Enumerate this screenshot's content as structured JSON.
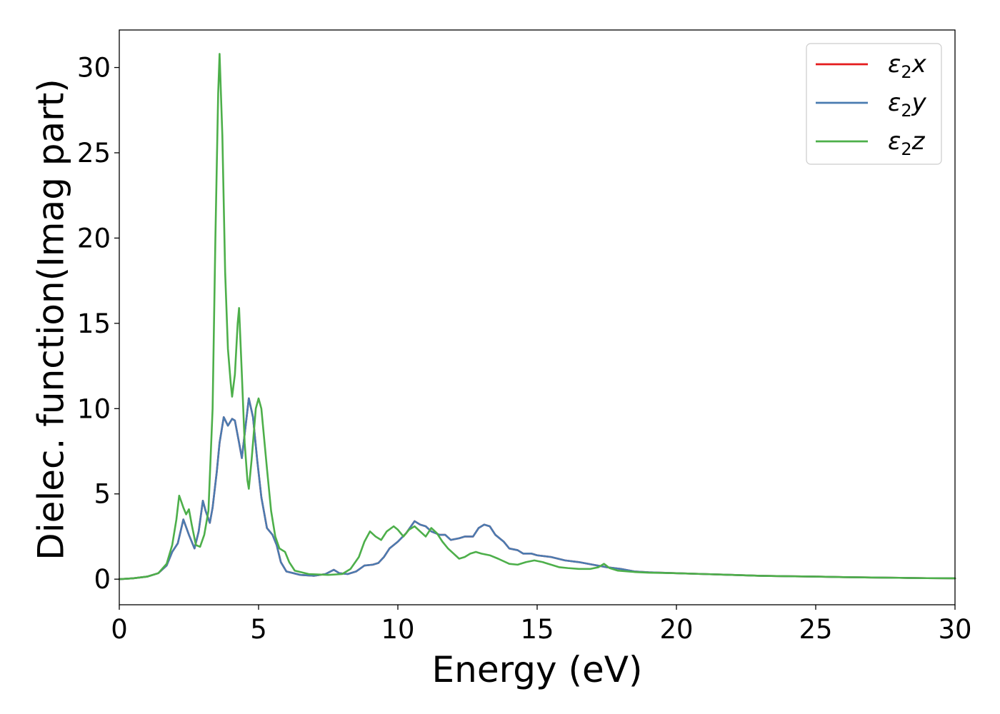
{
  "chart_data": {
    "type": "line",
    "title": "",
    "xlabel": "Energy (eV)",
    "ylabel": "Dielec. function(Imag part)",
    "xlim": [
      0,
      30
    ],
    "ylim": [
      -1.5,
      32.2
    ],
    "xticks": [
      0,
      5,
      10,
      15,
      20,
      25,
      30
    ],
    "yticks": [
      0,
      5,
      10,
      15,
      20,
      25,
      30
    ],
    "grid": false,
    "legend_position": "upper right",
    "series": [
      {
        "name": "ε2x",
        "label_base": "ε",
        "label_sub": "2",
        "label_var": "x",
        "color": "#e41a1c",
        "points": [
          [
            0,
            0
          ],
          [
            0.5,
            0.05
          ],
          [
            1.0,
            0.15
          ],
          [
            1.4,
            0.35
          ],
          [
            1.7,
            0.8
          ],
          [
            1.9,
            1.6
          ],
          [
            2.1,
            2.1
          ],
          [
            2.3,
            3.5
          ],
          [
            2.5,
            2.6
          ],
          [
            2.7,
            1.8
          ],
          [
            2.85,
            2.8
          ],
          [
            3.0,
            4.6
          ],
          [
            3.1,
            4.0
          ],
          [
            3.25,
            3.3
          ],
          [
            3.35,
            4.2
          ],
          [
            3.5,
            6.3
          ],
          [
            3.6,
            8.0
          ],
          [
            3.75,
            9.5
          ],
          [
            3.9,
            9.0
          ],
          [
            4.05,
            9.4
          ],
          [
            4.15,
            9.3
          ],
          [
            4.3,
            8.0
          ],
          [
            4.4,
            7.1
          ],
          [
            4.5,
            8.5
          ],
          [
            4.65,
            10.6
          ],
          [
            4.8,
            9.5
          ],
          [
            4.95,
            7.0
          ],
          [
            5.1,
            4.8
          ],
          [
            5.3,
            3.0
          ],
          [
            5.5,
            2.6
          ],
          [
            5.65,
            2.0
          ],
          [
            5.8,
            1.0
          ],
          [
            6.0,
            0.45
          ],
          [
            6.5,
            0.25
          ],
          [
            7.0,
            0.2
          ],
          [
            7.4,
            0.3
          ],
          [
            7.7,
            0.55
          ],
          [
            7.9,
            0.35
          ],
          [
            8.2,
            0.3
          ],
          [
            8.5,
            0.45
          ],
          [
            8.8,
            0.8
          ],
          [
            9.1,
            0.85
          ],
          [
            9.3,
            0.95
          ],
          [
            9.5,
            1.3
          ],
          [
            9.7,
            1.8
          ],
          [
            10.0,
            2.2
          ],
          [
            10.3,
            2.7
          ],
          [
            10.6,
            3.4
          ],
          [
            10.8,
            3.2
          ],
          [
            11.0,
            3.1
          ],
          [
            11.2,
            2.8
          ],
          [
            11.5,
            2.6
          ],
          [
            11.7,
            2.6
          ],
          [
            11.9,
            2.3
          ],
          [
            12.2,
            2.4
          ],
          [
            12.4,
            2.5
          ],
          [
            12.7,
            2.5
          ],
          [
            12.9,
            3.0
          ],
          [
            13.1,
            3.2
          ],
          [
            13.3,
            3.1
          ],
          [
            13.5,
            2.6
          ],
          [
            13.8,
            2.2
          ],
          [
            14.0,
            1.8
          ],
          [
            14.3,
            1.7
          ],
          [
            14.5,
            1.5
          ],
          [
            14.8,
            1.5
          ],
          [
            15.0,
            1.4
          ],
          [
            15.5,
            1.3
          ],
          [
            16.0,
            1.1
          ],
          [
            16.5,
            1.0
          ],
          [
            17.0,
            0.85
          ],
          [
            17.5,
            0.7
          ],
          [
            18.0,
            0.6
          ],
          [
            18.5,
            0.45
          ],
          [
            19.0,
            0.4
          ],
          [
            20.0,
            0.35
          ],
          [
            21.0,
            0.3
          ],
          [
            22.0,
            0.25
          ],
          [
            23.0,
            0.2
          ],
          [
            24.0,
            0.17
          ],
          [
            25.0,
            0.15
          ],
          [
            26.0,
            0.12
          ],
          [
            27.0,
            0.1
          ],
          [
            28.0,
            0.08
          ],
          [
            29.0,
            0.06
          ],
          [
            30.0,
            0.05
          ]
        ]
      },
      {
        "name": "ε2y",
        "label_base": "ε",
        "label_sub": "2",
        "label_var": "y",
        "color": "#4a7bb0",
        "points": [
          [
            0,
            0
          ],
          [
            0.5,
            0.05
          ],
          [
            1.0,
            0.15
          ],
          [
            1.4,
            0.35
          ],
          [
            1.7,
            0.8
          ],
          [
            1.9,
            1.6
          ],
          [
            2.1,
            2.1
          ],
          [
            2.3,
            3.5
          ],
          [
            2.5,
            2.6
          ],
          [
            2.7,
            1.8
          ],
          [
            2.85,
            2.8
          ],
          [
            3.0,
            4.6
          ],
          [
            3.1,
            4.0
          ],
          [
            3.25,
            3.3
          ],
          [
            3.35,
            4.2
          ],
          [
            3.5,
            6.3
          ],
          [
            3.6,
            8.0
          ],
          [
            3.75,
            9.5
          ],
          [
            3.9,
            9.0
          ],
          [
            4.05,
            9.4
          ],
          [
            4.15,
            9.3
          ],
          [
            4.3,
            8.0
          ],
          [
            4.4,
            7.1
          ],
          [
            4.5,
            8.5
          ],
          [
            4.65,
            10.6
          ],
          [
            4.8,
            9.5
          ],
          [
            4.95,
            7.0
          ],
          [
            5.1,
            4.8
          ],
          [
            5.3,
            3.0
          ],
          [
            5.5,
            2.6
          ],
          [
            5.65,
            2.0
          ],
          [
            5.8,
            1.0
          ],
          [
            6.0,
            0.45
          ],
          [
            6.5,
            0.25
          ],
          [
            7.0,
            0.2
          ],
          [
            7.4,
            0.3
          ],
          [
            7.7,
            0.55
          ],
          [
            7.9,
            0.35
          ],
          [
            8.2,
            0.3
          ],
          [
            8.5,
            0.45
          ],
          [
            8.8,
            0.8
          ],
          [
            9.1,
            0.85
          ],
          [
            9.3,
            0.95
          ],
          [
            9.5,
            1.3
          ],
          [
            9.7,
            1.8
          ],
          [
            10.0,
            2.2
          ],
          [
            10.3,
            2.7
          ],
          [
            10.6,
            3.4
          ],
          [
            10.8,
            3.2
          ],
          [
            11.0,
            3.1
          ],
          [
            11.2,
            2.8
          ],
          [
            11.5,
            2.6
          ],
          [
            11.7,
            2.6
          ],
          [
            11.9,
            2.3
          ],
          [
            12.2,
            2.4
          ],
          [
            12.4,
            2.5
          ],
          [
            12.7,
            2.5
          ],
          [
            12.9,
            3.0
          ],
          [
            13.1,
            3.2
          ],
          [
            13.3,
            3.1
          ],
          [
            13.5,
            2.6
          ],
          [
            13.8,
            2.2
          ],
          [
            14.0,
            1.8
          ],
          [
            14.3,
            1.7
          ],
          [
            14.5,
            1.5
          ],
          [
            14.8,
            1.5
          ],
          [
            15.0,
            1.4
          ],
          [
            15.5,
            1.3
          ],
          [
            16.0,
            1.1
          ],
          [
            16.5,
            1.0
          ],
          [
            17.0,
            0.85
          ],
          [
            17.5,
            0.7
          ],
          [
            18.0,
            0.6
          ],
          [
            18.5,
            0.45
          ],
          [
            19.0,
            0.4
          ],
          [
            20.0,
            0.35
          ],
          [
            21.0,
            0.3
          ],
          [
            22.0,
            0.25
          ],
          [
            23.0,
            0.2
          ],
          [
            24.0,
            0.17
          ],
          [
            25.0,
            0.15
          ],
          [
            26.0,
            0.12
          ],
          [
            27.0,
            0.1
          ],
          [
            28.0,
            0.08
          ],
          [
            29.0,
            0.06
          ],
          [
            30.0,
            0.05
          ]
        ]
      },
      {
        "name": "ε2z",
        "label_base": "ε",
        "label_sub": "2",
        "label_var": "z",
        "color": "#4daf4a",
        "points": [
          [
            0,
            0
          ],
          [
            0.5,
            0.05
          ],
          [
            1.0,
            0.15
          ],
          [
            1.4,
            0.35
          ],
          [
            1.7,
            0.9
          ],
          [
            1.9,
            2.0
          ],
          [
            2.05,
            3.5
          ],
          [
            2.15,
            4.9
          ],
          [
            2.3,
            4.2
          ],
          [
            2.4,
            3.8
          ],
          [
            2.5,
            4.1
          ],
          [
            2.6,
            3.2
          ],
          [
            2.75,
            2.0
          ],
          [
            2.9,
            1.9
          ],
          [
            3.05,
            2.6
          ],
          [
            3.2,
            4.0
          ],
          [
            3.35,
            10.0
          ],
          [
            3.45,
            20.0
          ],
          [
            3.55,
            28.5
          ],
          [
            3.6,
            30.8
          ],
          [
            3.7,
            26.0
          ],
          [
            3.8,
            18.0
          ],
          [
            3.9,
            13.5
          ],
          [
            4.0,
            11.5
          ],
          [
            4.05,
            10.7
          ],
          [
            4.15,
            12.0
          ],
          [
            4.25,
            15.0
          ],
          [
            4.3,
            15.9
          ],
          [
            4.4,
            12.0
          ],
          [
            4.5,
            8.0
          ],
          [
            4.6,
            5.8
          ],
          [
            4.65,
            5.3
          ],
          [
            4.75,
            7.0
          ],
          [
            4.9,
            10.0
          ],
          [
            5.0,
            10.6
          ],
          [
            5.1,
            10.0
          ],
          [
            5.3,
            6.5
          ],
          [
            5.45,
            4.0
          ],
          [
            5.6,
            2.5
          ],
          [
            5.75,
            1.8
          ],
          [
            5.95,
            1.6
          ],
          [
            6.1,
            1.0
          ],
          [
            6.3,
            0.5
          ],
          [
            6.8,
            0.3
          ],
          [
            7.5,
            0.25
          ],
          [
            8.0,
            0.3
          ],
          [
            8.3,
            0.6
          ],
          [
            8.6,
            1.3
          ],
          [
            8.8,
            2.2
          ],
          [
            9.0,
            2.8
          ],
          [
            9.2,
            2.5
          ],
          [
            9.4,
            2.3
          ],
          [
            9.6,
            2.8
          ],
          [
            9.85,
            3.1
          ],
          [
            10.0,
            2.9
          ],
          [
            10.2,
            2.5
          ],
          [
            10.4,
            2.9
          ],
          [
            10.6,
            3.1
          ],
          [
            10.8,
            2.8
          ],
          [
            11.0,
            2.5
          ],
          [
            11.2,
            3.0
          ],
          [
            11.4,
            2.7
          ],
          [
            11.6,
            2.2
          ],
          [
            11.8,
            1.8
          ],
          [
            12.0,
            1.5
          ],
          [
            12.2,
            1.2
          ],
          [
            12.4,
            1.3
          ],
          [
            12.6,
            1.5
          ],
          [
            12.8,
            1.6
          ],
          [
            13.0,
            1.5
          ],
          [
            13.3,
            1.4
          ],
          [
            13.6,
            1.2
          ],
          [
            14.0,
            0.9
          ],
          [
            14.3,
            0.85
          ],
          [
            14.6,
            1.0
          ],
          [
            14.9,
            1.1
          ],
          [
            15.2,
            1.0
          ],
          [
            15.5,
            0.85
          ],
          [
            15.8,
            0.7
          ],
          [
            16.1,
            0.65
          ],
          [
            16.5,
            0.6
          ],
          [
            16.9,
            0.6
          ],
          [
            17.2,
            0.7
          ],
          [
            17.4,
            0.9
          ],
          [
            17.6,
            0.65
          ],
          [
            17.9,
            0.5
          ],
          [
            18.5,
            0.42
          ],
          [
            19.0,
            0.38
          ],
          [
            20.0,
            0.35
          ],
          [
            21.0,
            0.3
          ],
          [
            22.0,
            0.25
          ],
          [
            23.0,
            0.2
          ],
          [
            24.0,
            0.17
          ],
          [
            25.0,
            0.15
          ],
          [
            26.0,
            0.12
          ],
          [
            27.0,
            0.1
          ],
          [
            28.0,
            0.08
          ],
          [
            29.0,
            0.06
          ],
          [
            30.0,
            0.05
          ]
        ]
      }
    ]
  }
}
